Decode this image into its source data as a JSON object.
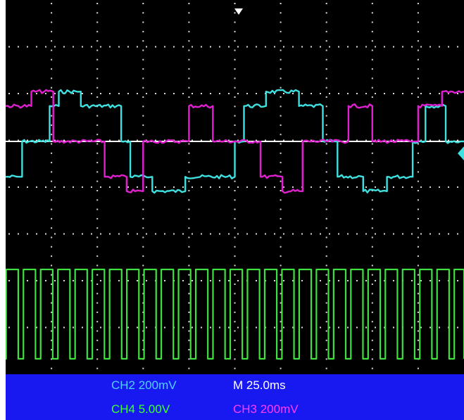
{
  "chart_data": {
    "type": "line",
    "title": "",
    "grid": true,
    "time_per_div_ms": 25.0,
    "x_range_ms": [
      0,
      250
    ],
    "series": [
      {
        "name": "CH2",
        "color": "#3fe0e0",
        "volts_per_div": 0.2,
        "unit": "V",
        "x_ms": [
          0,
          9,
          9,
          24,
          24,
          29,
          29,
          41,
          41,
          63,
          63,
          68,
          68,
          80,
          80,
          98,
          98,
          125,
          125,
          130,
          130,
          142,
          142,
          160,
          160,
          173,
          173,
          181,
          181,
          195,
          195,
          208,
          208,
          222,
          222,
          229,
          229,
          240,
          240,
          250
        ],
        "y_v": [
          -0.27,
          -0.27,
          0.0,
          0.0,
          0.27,
          0.27,
          0.38,
          0.38,
          0.27,
          0.27,
          0.0,
          0.0,
          -0.27,
          -0.27,
          -0.38,
          -0.38,
          -0.27,
          -0.27,
          0.0,
          0.0,
          0.27,
          0.27,
          0.38,
          0.38,
          0.27,
          0.27,
          0.0,
          0.0,
          -0.27,
          -0.27,
          -0.38,
          -0.38,
          -0.27,
          -0.27,
          0.0,
          0.0,
          0.27,
          0.27,
          0.0,
          0.0
        ]
      },
      {
        "name": "CH3",
        "color": "#e020d0",
        "volts_per_div": 0.2,
        "unit": "V",
        "x_ms": [
          0,
          14,
          14,
          26,
          26,
          54,
          54,
          66,
          66,
          75,
          75,
          100,
          100,
          113,
          113,
          139,
          139,
          151,
          151,
          162,
          162,
          187,
          187,
          200,
          200,
          225,
          225,
          238,
          238,
          250
        ],
        "y_v": [
          0.27,
          0.27,
          0.38,
          0.38,
          0.0,
          0.0,
          -0.27,
          -0.27,
          -0.38,
          -0.38,
          0.0,
          0.0,
          0.27,
          0.27,
          0.0,
          0.0,
          -0.27,
          -0.27,
          -0.38,
          -0.38,
          0.0,
          0.0,
          0.27,
          0.27,
          0.0,
          0.0,
          0.27,
          0.27,
          0.38,
          0.38
        ]
      },
      {
        "name": "CH4",
        "color": "#40e040",
        "volts_per_div": 5.0,
        "unit": "V",
        "type": "pulse_train",
        "period_ms": 9.4,
        "duty": 0.7,
        "high_v": 5.0,
        "low_v": 0.0
      }
    ]
  },
  "status": {
    "ch2": "CH2  200mV",
    "time": "M 25.0ms",
    "ch4": "CH4  5.00V",
    "ch3": "CH3  200mV"
  },
  "colors": {
    "grid": "#d8d8d8",
    "center_line": "#ffffff",
    "trigger_marker": "#ffffff",
    "ch2_level_marker": "#3fe0e0"
  }
}
